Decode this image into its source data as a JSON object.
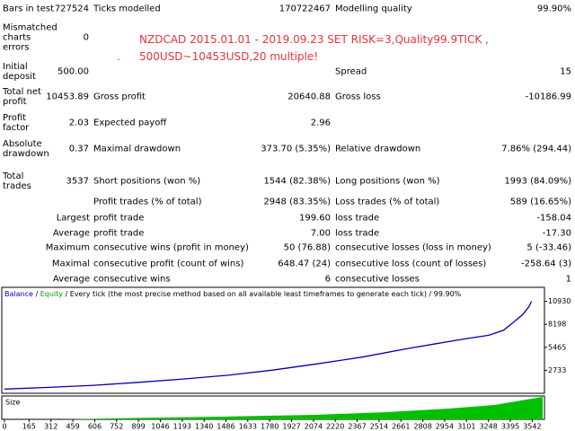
{
  "report": {
    "rows": [
      [
        "Bars in test",
        "727524",
        "Ticks modelled",
        "170722467",
        "Modelling quality",
        "99.90%"
      ],
      [
        "Mismatched charts errors",
        "0",
        null,
        null,
        null,
        null
      ],
      [
        "Initial deposit",
        "500.00",
        null,
        null,
        "Spread",
        "15"
      ],
      [
        "Total net profit",
        "10453.89",
        "Gross profit",
        "20640.88",
        "Gross loss",
        "-10186.99"
      ],
      [
        "Profit factor",
        "2.03",
        "Expected payoff",
        "2.96",
        null,
        null
      ],
      [
        "Absolute drawdown",
        "0.37",
        "Maximal drawdown",
        "373.70 (5.35%)",
        "Relative drawdown",
        "7.86% (294.44)"
      ],
      [
        "Total trades",
        "3537",
        "Short positions (won %)",
        "1544 (82.38%)",
        "Long positions (won %)",
        "1993 (84.09%)"
      ],
      [
        null,
        null,
        "Profit trades (% of total)",
        "2948 (83.35%)",
        "Loss trades (% of total)",
        "589 (16.65%)"
      ]
    ],
    "summary_rows": [
      [
        "Largest",
        "profit trade",
        "199.60",
        "loss trade",
        "-158.04"
      ],
      [
        "Average",
        "profit trade",
        "7.00",
        "loss trade",
        "-17.30"
      ],
      [
        "Maximum",
        "consecutive wins (profit in money)",
        "50 (76.88)",
        "consecutive losses (loss in money)",
        "5 (-33.46)"
      ],
      [
        "Maximal",
        "consecutive profit (count of wins)",
        "648.47 (24)",
        "consecutive loss (count of losses)",
        "-258.64 (3)"
      ],
      [
        "Average",
        "consecutive wins",
        "6",
        "consecutive losses",
        "1"
      ]
    ]
  },
  "annotation": [
    "NZDCAD 2015.01.01 - 2019.09.23 SET RISK=3,Quality99.9TICK ,",
    ".",
    "500USD~10453USD,20 multiple!"
  ],
  "graph": {
    "type": "line",
    "header": [
      "Balance",
      "Equity",
      "Every tick (the most precise method based on all available least timeframes to generate each tick)",
      "99.90%"
    ],
    "header_colors": [
      "#0000c0",
      "#00a000",
      "#000000",
      "#000000"
    ],
    "separator": " / ",
    "color": "#0000b0",
    "x": [
      0,
      300,
      600,
      900,
      1200,
      1500,
      1800,
      2100,
      2400,
      2700,
      2900,
      3100,
      3250,
      3350,
      3420,
      3480,
      3520,
      3537
    ],
    "balance": [
      500,
      700,
      950,
      1300,
      1700,
      2150,
      2750,
      3500,
      4300,
      5300,
      5900,
      6500,
      6900,
      7500,
      8500,
      9400,
      10300,
      10930
    ],
    "xlim": [
      0,
      3600
    ],
    "ylim": [
      0,
      12600
    ],
    "yticks": [
      2733,
      5465,
      8198,
      10930
    ],
    "xticks": [
      0,
      165,
      312,
      459,
      606,
      752,
      899,
      1046,
      1193,
      1340,
      1486,
      1633,
      1780,
      1927,
      2074,
      2220,
      2367,
      2514,
      2661,
      2808,
      2954,
      3101,
      3248,
      3395,
      3542
    ],
    "size_label": "Size"
  }
}
